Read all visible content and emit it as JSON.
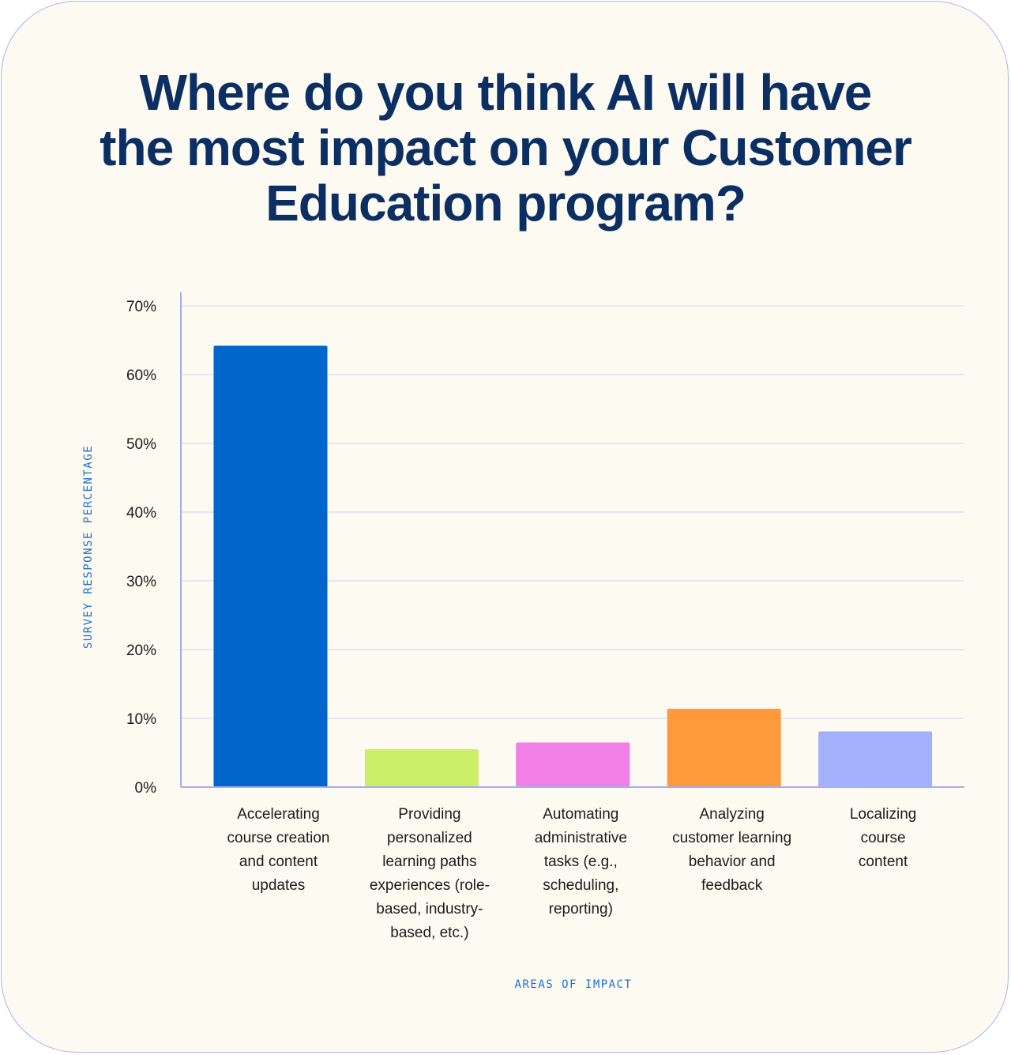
{
  "chart_data": {
    "type": "bar",
    "title_lines": [
      "Where do you think AI will have",
      "the most impact on your Customer",
      "Education program?"
    ],
    "ylabel": "SURVEY RESPONSE PERCENTAGE",
    "xlabel": "AREAS OF IMPACT",
    "ylim": [
      0,
      70
    ],
    "yticks": [
      "0%",
      "10%",
      "20%",
      "30%",
      "40%",
      "50%",
      "60%",
      "70%"
    ],
    "grid": true,
    "categories": [
      [
        "Accelerating",
        "course creation",
        "and content",
        "updates"
      ],
      [
        "Providing",
        "personalized",
        "learning paths",
        "experiences (role-",
        "based, industry-",
        "based, etc.)"
      ],
      [
        "Automating",
        "administrative",
        "tasks (e.g.,",
        "scheduling,",
        "reporting)"
      ],
      [
        "Analyzing",
        "customer learning",
        "behavior and",
        "feedback"
      ],
      [
        "Localizing",
        "course",
        "content"
      ]
    ],
    "values": [
      64.2,
      5.5,
      6.5,
      11.4,
      8.1
    ],
    "colors": [
      "#0066cc",
      "#ccef6a",
      "#f27fe6",
      "#ff9a3c",
      "#a3b0fc"
    ]
  }
}
